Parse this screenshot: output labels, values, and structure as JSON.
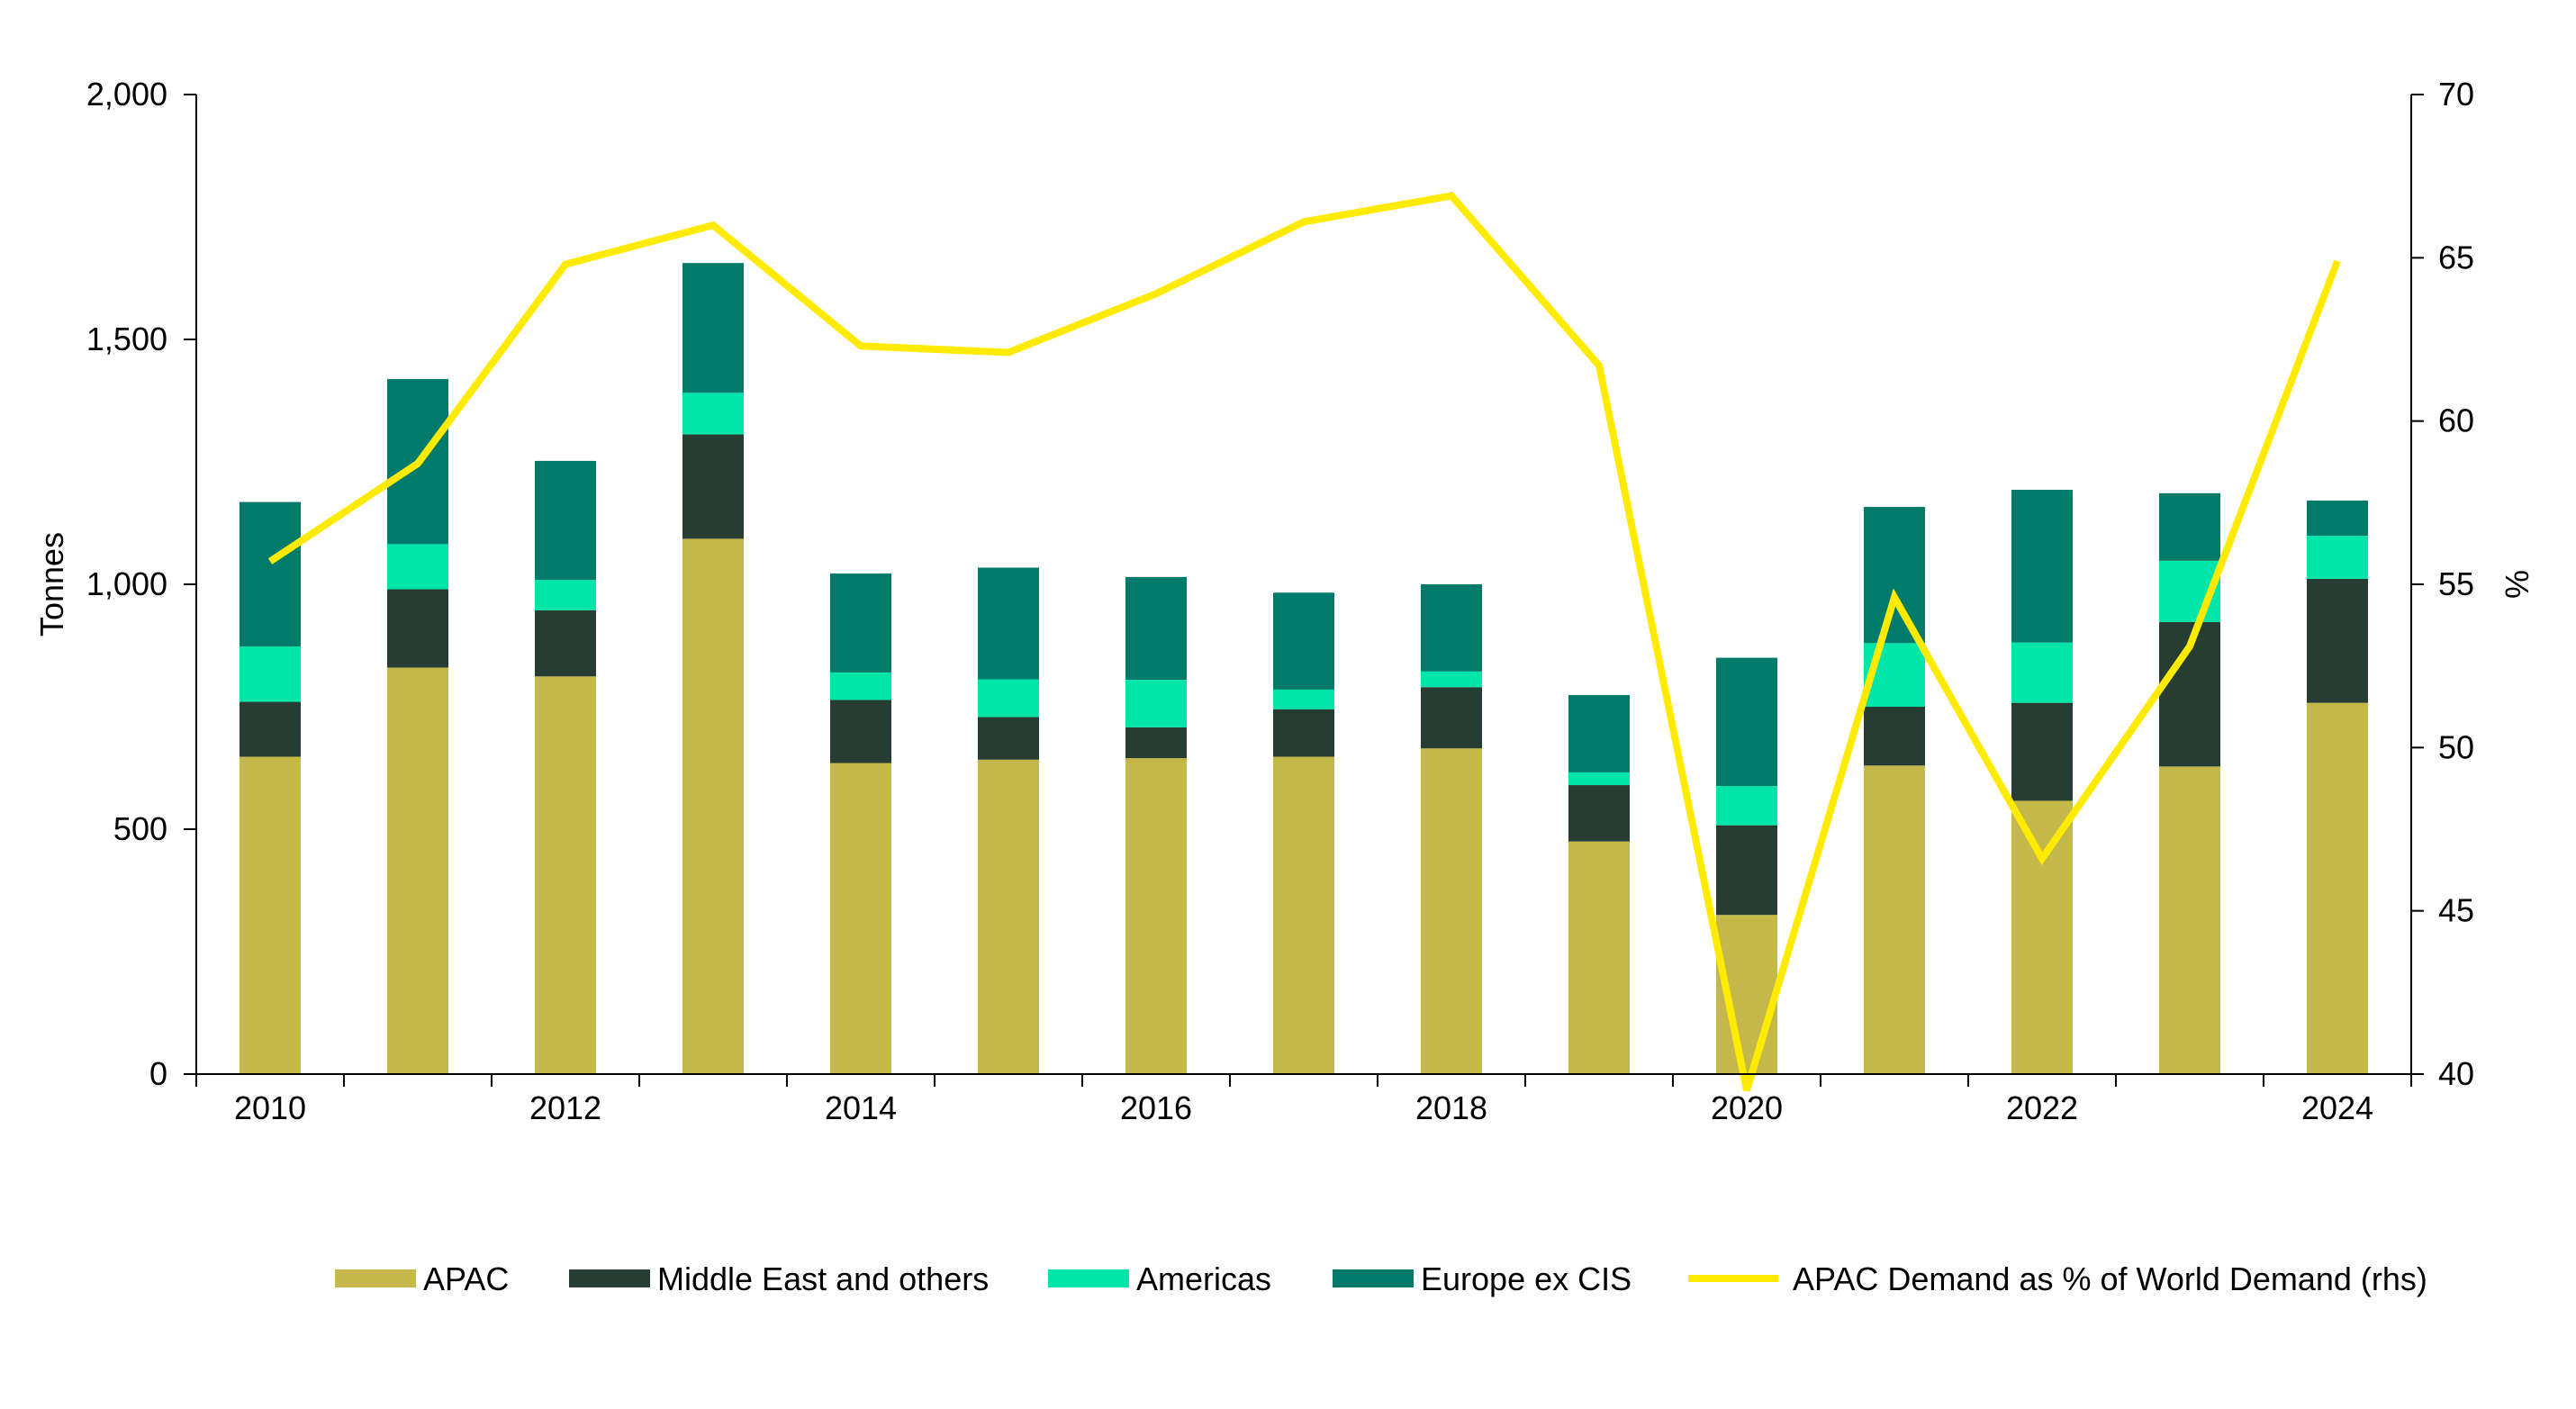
{
  "chart_data": {
    "type": "bar",
    "stacked": true,
    "x": [
      2010,
      2011,
      2012,
      2013,
      2014,
      2015,
      2016,
      2017,
      2018,
      2019,
      2020,
      2021,
      2022,
      2023,
      2024
    ],
    "x_tick_labels": [
      "2010",
      "2012",
      "2014",
      "2016",
      "2018",
      "2020",
      "2022",
      "2024"
    ],
    "x_tick_values": [
      2010,
      2012,
      2014,
      2016,
      2018,
      2020,
      2022,
      2024
    ],
    "series": [
      {
        "name": "APAC",
        "color": "#c4b84a",
        "values": [
          648,
          830,
          812,
          1093,
          635,
          642,
          645,
          648,
          665,
          475,
          325,
          630,
          558,
          628,
          758
        ]
      },
      {
        "name": "Middle East and others",
        "color": "#273c33",
        "values": [
          112,
          160,
          135,
          213,
          129,
          87,
          63,
          97,
          125,
          115,
          183,
          120,
          200,
          295,
          253
        ]
      },
      {
        "name": "Americas",
        "color": "#00e5a8",
        "values": [
          113,
          92,
          62,
          85,
          56,
          77,
          97,
          40,
          32,
          26,
          80,
          130,
          123,
          125,
          88
        ]
      },
      {
        "name": "Europe ex CIS",
        "color": "#007b6b",
        "values": [
          295,
          337,
          243,
          265,
          202,
          228,
          210,
          198,
          178,
          158,
          262,
          278,
          312,
          138,
          72
        ]
      },
      {
        "name": "APAC Demand as % of World Demand (rhs)",
        "type": "line",
        "axis": "right",
        "color": "#ffeb00",
        "values": [
          55.7,
          58.7,
          64.8,
          66.0,
          62.3,
          62.1,
          63.9,
          66.1,
          66.9,
          61.7,
          39.5,
          54.6,
          46.6,
          53.1,
          64.9
        ]
      }
    ],
    "y_left": {
      "label": "Tonnes",
      "lim": [
        0,
        2000
      ],
      "ticks": [
        0,
        500,
        1000,
        1500,
        2000
      ],
      "tick_labels": [
        "0",
        "500",
        "1,000",
        "1,500",
        "2,000"
      ]
    },
    "y_right": {
      "label": "%",
      "lim": [
        40,
        70
      ],
      "ticks": [
        40,
        45,
        50,
        55,
        60,
        65,
        70
      ],
      "tick_labels": [
        "40",
        "45",
        "50",
        "55",
        "60",
        "65",
        "70"
      ]
    },
    "grid": false,
    "legend_position": "bottom"
  }
}
